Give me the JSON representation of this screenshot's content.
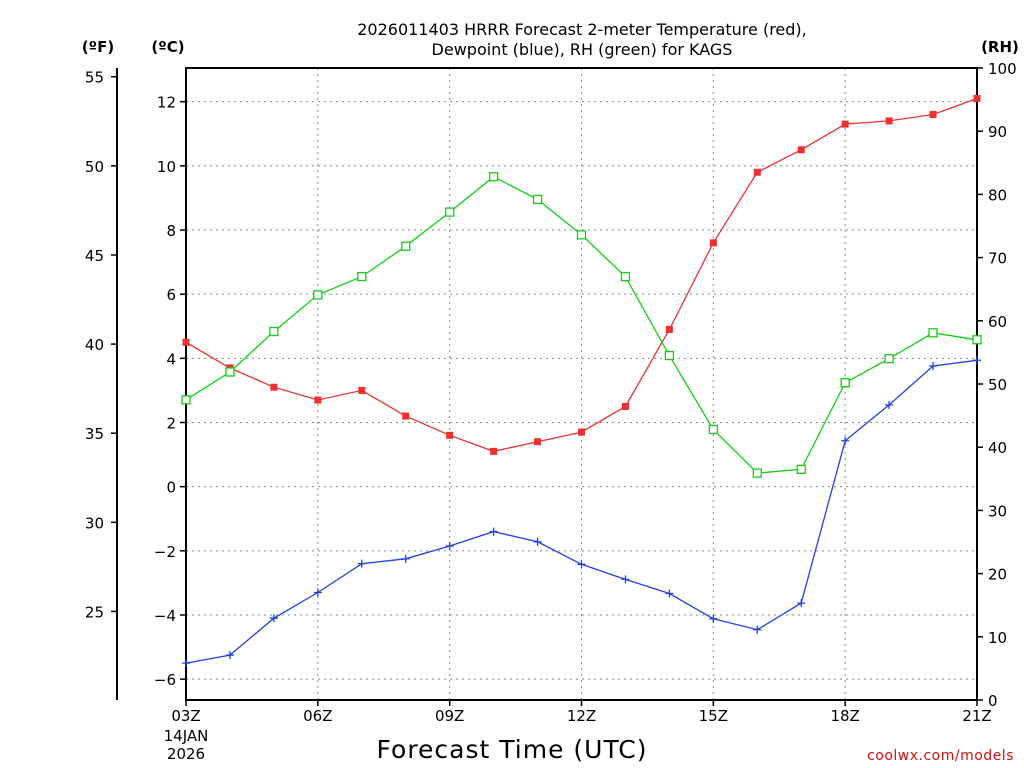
{
  "chart_data": {
    "type": "line",
    "title_line1": "2026011403 HRRR Forecast 2-meter Temperature (red),",
    "title_line2": "Dewpoint (blue), RH (green) for KAGS",
    "xlabel": "Forecast Time (UTC)",
    "credit": "coolwx.com/models",
    "unit_f": "(ºF)",
    "unit_c": "(ºC)",
    "unit_rh": "(RH)",
    "x_hours": [
      3,
      4,
      5,
      6,
      7,
      8,
      9,
      10,
      11,
      12,
      13,
      14,
      15,
      16,
      17,
      18,
      19,
      20,
      21
    ],
    "x_ticks": [
      {
        "hour": 3,
        "label": "03Z"
      },
      {
        "hour": 6,
        "label": "06Z"
      },
      {
        "hour": 9,
        "label": "09Z"
      },
      {
        "hour": 12,
        "label": "12Z"
      },
      {
        "hour": 15,
        "label": "15Z"
      },
      {
        "hour": 18,
        "label": "18Z"
      },
      {
        "hour": 21,
        "label": "21Z"
      }
    ],
    "x_date_line1": "14JAN",
    "x_date_line2": "2026",
    "xlim": [
      3,
      21
    ],
    "celsius_ticks": [
      {
        "value": 12,
        "label": "12"
      },
      {
        "value": 10,
        "label": "10"
      },
      {
        "value": 8,
        "label": "8"
      },
      {
        "value": 6,
        "label": "6"
      },
      {
        "value": 4,
        "label": "4"
      },
      {
        "value": 2,
        "label": "2"
      },
      {
        "value": 0,
        "label": "0"
      },
      {
        "value": -2,
        "label": "−2"
      },
      {
        "value": -4,
        "label": "−4"
      },
      {
        "value": -6,
        "label": "−6"
      }
    ],
    "ylim_c": [
      -6.65,
      13.05
    ],
    "fahrenheit_ticks": [
      {
        "value": 55,
        "label": "55"
      },
      {
        "value": 50,
        "label": "50"
      },
      {
        "value": 45,
        "label": "45"
      },
      {
        "value": 40,
        "label": "40"
      },
      {
        "value": 35,
        "label": "35"
      },
      {
        "value": 30,
        "label": "30"
      },
      {
        "value": 25,
        "label": "25"
      }
    ],
    "rh_ticks": [
      {
        "value": 100,
        "label": "100"
      },
      {
        "value": 90,
        "label": "90"
      },
      {
        "value": 80,
        "label": "80"
      },
      {
        "value": 70,
        "label": "70"
      },
      {
        "value": 60,
        "label": "60"
      },
      {
        "value": 50,
        "label": "50"
      },
      {
        "value": 40,
        "label": "40"
      },
      {
        "value": 30,
        "label": "30"
      },
      {
        "value": 20,
        "label": "20"
      },
      {
        "value": 10,
        "label": "10"
      },
      {
        "value": 0,
        "label": "0"
      }
    ],
    "ylim_rh": [
      0,
      100
    ],
    "grid": true,
    "series": [
      {
        "name": "Temperature",
        "unit": "C",
        "color": "#ee3030",
        "marker": "filled-square",
        "values": [
          4.5,
          3.7,
          3.1,
          2.7,
          3.0,
          2.2,
          1.6,
          1.1,
          1.4,
          1.7,
          2.5,
          4.9,
          7.6,
          9.8,
          10.5,
          11.3,
          11.4,
          11.6,
          12.1
        ]
      },
      {
        "name": "Dewpoint",
        "unit": "C",
        "color": "#2040e8",
        "marker": "plus",
        "values": [
          -5.5,
          -5.25,
          -4.1,
          -3.3,
          -2.4,
          -2.25,
          -1.85,
          -1.4,
          -1.72,
          -2.42,
          -2.89,
          -3.33,
          -4.12,
          -4.46,
          -3.63,
          1.43,
          2.55,
          3.76,
          3.94
        ]
      },
      {
        "name": "RH",
        "unit": "%",
        "color": "#10d010",
        "marker": "open-square",
        "values": [
          47.5,
          51.9,
          58.3,
          64.1,
          67.0,
          71.8,
          77.2,
          82.8,
          79.2,
          73.6,
          67.0,
          54.5,
          42.8,
          35.9,
          36.5,
          50.2,
          54.0,
          58.1,
          57.0
        ]
      }
    ]
  }
}
